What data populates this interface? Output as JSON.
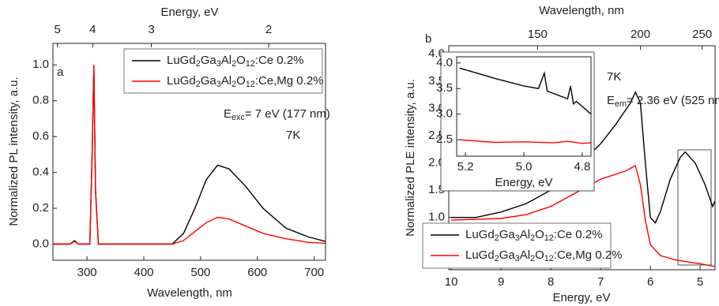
{
  "chart_data": [
    {
      "type": "line",
      "xlabel": "Wavelength, nm",
      "ylabel": "Normalized PL intensity, a.u.",
      "x2label": "Energy, eV",
      "xlim": [
        240,
        720
      ],
      "xticks": [
        300,
        400,
        500,
        600,
        700
      ],
      "ylim": [
        -0.09,
        1.12
      ],
      "yticks": [
        {
          "value": 0,
          "label": "0.0"
        },
        0.2,
        0.4,
        0.6,
        0.8,
        {
          "value": 1,
          "label": "1.0"
        }
      ],
      "x2ticks": [
        5,
        4,
        3,
        2
      ],
      "legend": "upper right",
      "grid": false,
      "annotations": [
        "a",
        "Eexc= 7 eV (177 nm)",
        "7K"
      ],
      "series": [
        {
          "name": "LuGd2Ga3Al2O12:Ce 0.2%",
          "color": "#000000",
          "x": [
            240,
            270,
            278,
            285,
            305,
            309,
            312,
            315,
            320,
            450,
            470,
            490,
            510,
            530,
            550,
            580,
            610,
            650,
            690,
            720
          ],
          "values": [
            0,
            0,
            0.02,
            0,
            0,
            0.5,
            1.0,
            0.3,
            0,
            0,
            0.06,
            0.2,
            0.36,
            0.44,
            0.42,
            0.32,
            0.2,
            0.09,
            0.04,
            0.015
          ]
        },
        {
          "name": "LuGd2Ga3Al2O12:Ce,Mg 0.2%",
          "color": "#ff0000",
          "x": [
            240,
            270,
            278,
            285,
            305,
            309,
            312,
            315,
            320,
            450,
            470,
            490,
            510,
            530,
            550,
            580,
            610,
            650,
            690,
            720
          ],
          "values": [
            0,
            0,
            0.015,
            0,
            0,
            0.5,
            1.0,
            0.3,
            0,
            0,
            0.02,
            0.07,
            0.12,
            0.15,
            0.14,
            0.1,
            0.06,
            0.03,
            0.01,
            0.005
          ]
        }
      ]
    },
    {
      "type": "line",
      "xlabel": "Energy, eV",
      "ylabel": "Normalized PLE intensity, a.u.",
      "x2label": "Wavelength, nm",
      "xlim": [
        10.05,
        4.7
      ],
      "xticks": [
        10,
        9,
        8,
        7,
        6,
        5
      ],
      "ylim": [
        0.04,
        4.15
      ],
      "yticks": [
        {
          "value": 1,
          "label": "1.0"
        },
        1.5,
        {
          "value": 2,
          "label": "2.0"
        },
        2.5,
        {
          "value": 3,
          "label": "3.0"
        },
        3.5,
        {
          "value": 4,
          "label": "4.0"
        }
      ],
      "x2ticks": [
        150,
        200,
        250
      ],
      "legend": "lower left",
      "grid": false,
      "annotations": [
        "b",
        "7K",
        "Eem= 2.36 eV (525 nm)"
      ],
      "series": [
        {
          "name": "LuGd2Ga3Al2O12:Ce 0.2%",
          "color": "#000000",
          "x": [
            10,
            9.5,
            9,
            8.5,
            8,
            7.5,
            7,
            6.7,
            6.4,
            6.3,
            6.2,
            6.1,
            6.0,
            5.9,
            5.8,
            5.6,
            5.4,
            5.3,
            5.1,
            4.9,
            4.75,
            4.7
          ],
          "values": [
            1.0,
            1.0,
            1.1,
            1.25,
            1.5,
            1.9,
            2.35,
            2.7,
            3.1,
            3.3,
            3.1,
            2.0,
            1.0,
            0.9,
            1.1,
            1.7,
            2.1,
            2.2,
            2.0,
            1.6,
            1.2,
            1.3
          ]
        },
        {
          "name": "LuGd2Ga3Al2O12:Ce,Mg 0.2%",
          "color": "#ff0000",
          "x": [
            10,
            9,
            8.5,
            8,
            7.5,
            7,
            6.5,
            6.3,
            6.2,
            6.1,
            6.0,
            5.8,
            5.5,
            5.0,
            4.7
          ],
          "values": [
            0.95,
            0.98,
            1.05,
            1.2,
            1.45,
            1.7,
            1.85,
            1.95,
            1.6,
            0.95,
            0.5,
            0.3,
            0.22,
            0.15,
            0.1
          ]
        }
      ]
    },
    {
      "type": "line",
      "xlabel": "Energy, eV",
      "xlim": [
        5.23,
        4.77
      ],
      "xticks": [
        5.2,
        {
          "value": 5,
          "label": "5.0"
        },
        4.8
      ],
      "ylim": [
        2.18,
        4.12
      ],
      "yticks": [
        2.5,
        {
          "value": 3,
          "label": "3.0"
        },
        3.5,
        {
          "value": 4,
          "label": "4.0"
        }
      ],
      "grid": false,
      "series": [
        {
          "color": "#000000",
          "x": [
            5.22,
            5.1,
            5.0,
            4.95,
            4.93,
            4.92,
            4.85,
            4.84,
            4.83,
            4.82,
            4.77
          ],
          "values": [
            3.9,
            3.7,
            3.55,
            3.5,
            3.8,
            3.45,
            3.3,
            3.55,
            3.2,
            3.25,
            3.0
          ]
        },
        {
          "color": "#ff0000",
          "x": [
            5.22,
            5.1,
            5.0,
            4.9,
            4.85,
            4.8,
            4.77
          ],
          "values": [
            2.5,
            2.45,
            2.46,
            2.44,
            2.47,
            2.43,
            2.44
          ]
        }
      ]
    }
  ]
}
